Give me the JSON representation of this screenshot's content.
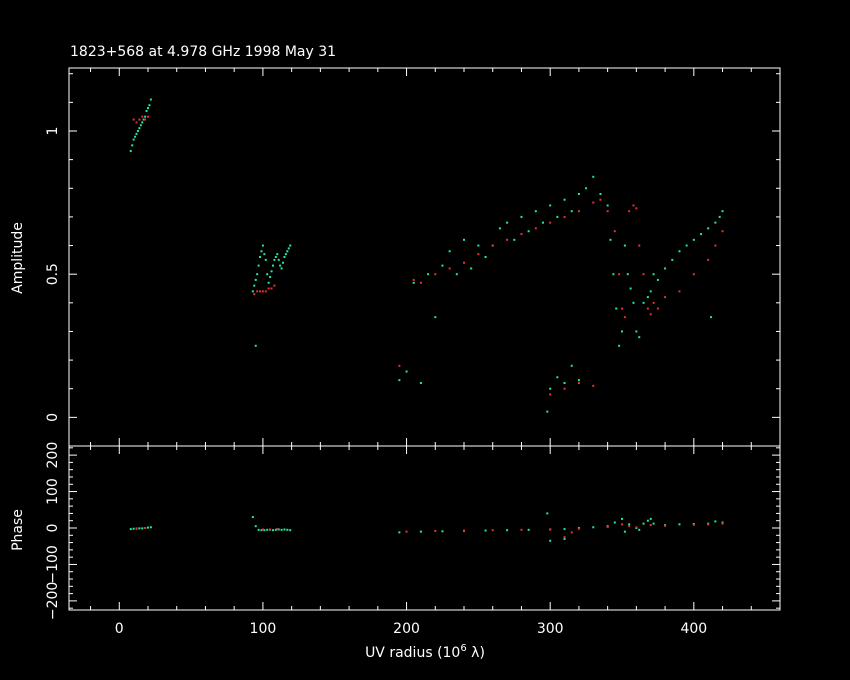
{
  "chart_data": [
    {
      "type": "scatter",
      "panel": "amplitude",
      "title": "1823+568 at 4.978 GHz 1998 May 31",
      "ylabel": "Amplitude",
      "xlabel": "",
      "xlim": [
        -35,
        460
      ],
      "ylim": [
        -0.1,
        1.22
      ],
      "xticks": [
        0,
        100,
        200,
        300,
        400
      ],
      "yticks": [
        0,
        0.5,
        1
      ],
      "ytick_labels": [
        "0",
        "0.5",
        "1"
      ],
      "series": [
        {
          "color": "#20e8a0",
          "points": [
            [
              8,
              0.93
            ],
            [
              9,
              0.95
            ],
            [
              10,
              0.97
            ],
            [
              11,
              0.98
            ],
            [
              12,
              0.99
            ],
            [
              13,
              1.0
            ],
            [
              14,
              1.01
            ],
            [
              15,
              1.02
            ],
            [
              16,
              1.03
            ],
            [
              17,
              1.04
            ],
            [
              18,
              1.05
            ],
            [
              19,
              1.07
            ],
            [
              20,
              1.08
            ],
            [
              21,
              1.09
            ],
            [
              22,
              1.11
            ],
            [
              93,
              0.44
            ],
            [
              94,
              0.46
            ],
            [
              95,
              0.48
            ],
            [
              96,
              0.5
            ],
            [
              97,
              0.53
            ],
            [
              98,
              0.56
            ],
            [
              99,
              0.58
            ],
            [
              100,
              0.6
            ],
            [
              101,
              0.57
            ],
            [
              102,
              0.55
            ],
            [
              103,
              0.5
            ],
            [
              104,
              0.47
            ],
            [
              105,
              0.49
            ],
            [
              106,
              0.51
            ],
            [
              107,
              0.53
            ],
            [
              108,
              0.55
            ],
            [
              109,
              0.56
            ],
            [
              110,
              0.57
            ],
            [
              111,
              0.55
            ],
            [
              112,
              0.53
            ],
            [
              113,
              0.52
            ],
            [
              114,
              0.54
            ],
            [
              115,
              0.56
            ],
            [
              116,
              0.57
            ],
            [
              117,
              0.58
            ],
            [
              118,
              0.59
            ],
            [
              119,
              0.6
            ],
            [
              95,
              0.25
            ],
            [
              195,
              0.13
            ],
            [
              200,
              0.16
            ],
            [
              205,
              0.47
            ],
            [
              210,
              0.12
            ],
            [
              215,
              0.5
            ],
            [
              220,
              0.35
            ],
            [
              225,
              0.53
            ],
            [
              230,
              0.58
            ],
            [
              235,
              0.5
            ],
            [
              240,
              0.62
            ],
            [
              245,
              0.52
            ],
            [
              250,
              0.6
            ],
            [
              255,
              0.56
            ],
            [
              260,
              0.6
            ],
            [
              265,
              0.66
            ],
            [
              270,
              0.68
            ],
            [
              275,
              0.62
            ],
            [
              280,
              0.7
            ],
            [
              285,
              0.65
            ],
            [
              290,
              0.72
            ],
            [
              295,
              0.68
            ],
            [
              300,
              0.74
            ],
            [
              305,
              0.7
            ],
            [
              310,
              0.76
            ],
            [
              315,
              0.72
            ],
            [
              320,
              0.78
            ],
            [
              325,
              0.8
            ],
            [
              330,
              0.84
            ],
            [
              335,
              0.78
            ],
            [
              340,
              0.74
            ],
            [
              342,
              0.62
            ],
            [
              344,
              0.5
            ],
            [
              346,
              0.38
            ],
            [
              348,
              0.25
            ],
            [
              350,
              0.3
            ],
            [
              352,
              0.6
            ],
            [
              354,
              0.5
            ],
            [
              356,
              0.45
            ],
            [
              358,
              0.4
            ],
            [
              360,
              0.3
            ],
            [
              362,
              0.28
            ],
            [
              365,
              0.4
            ],
            [
              368,
              0.42
            ],
            [
              370,
              0.44
            ],
            [
              372,
              0.5
            ],
            [
              375,
              0.48
            ],
            [
              380,
              0.52
            ],
            [
              385,
              0.55
            ],
            [
              390,
              0.58
            ],
            [
              395,
              0.6
            ],
            [
              400,
              0.62
            ],
            [
              405,
              0.64
            ],
            [
              410,
              0.66
            ],
            [
              412,
              0.35
            ],
            [
              415,
              0.68
            ],
            [
              418,
              0.7
            ],
            [
              420,
              0.72
            ],
            [
              300,
              0.1
            ],
            [
              305,
              0.14
            ],
            [
              310,
              0.12
            ],
            [
              315,
              0.18
            ],
            [
              320,
              0.13
            ],
            [
              298,
              0.02
            ]
          ]
        },
        {
          "color": "#e83030",
          "points": [
            [
              10,
              1.04
            ],
            [
              12,
              1.03
            ],
            [
              14,
              1.04
            ],
            [
              16,
              1.05
            ],
            [
              18,
              1.04
            ],
            [
              20,
              1.05
            ],
            [
              94,
              0.43
            ],
            [
              96,
              0.44
            ],
            [
              98,
              0.44
            ],
            [
              100,
              0.44
            ],
            [
              102,
              0.44
            ],
            [
              104,
              0.45
            ],
            [
              106,
              0.45
            ],
            [
              108,
              0.46
            ],
            [
              195,
              0.18
            ],
            [
              205,
              0.48
            ],
            [
              210,
              0.47
            ],
            [
              220,
              0.5
            ],
            [
              230,
              0.52
            ],
            [
              240,
              0.54
            ],
            [
              250,
              0.57
            ],
            [
              260,
              0.6
            ],
            [
              270,
              0.62
            ],
            [
              280,
              0.64
            ],
            [
              290,
              0.66
            ],
            [
              300,
              0.68
            ],
            [
              310,
              0.7
            ],
            [
              320,
              0.72
            ],
            [
              330,
              0.75
            ],
            [
              335,
              0.76
            ],
            [
              340,
              0.72
            ],
            [
              345,
              0.65
            ],
            [
              348,
              0.5
            ],
            [
              350,
              0.38
            ],
            [
              352,
              0.35
            ],
            [
              355,
              0.72
            ],
            [
              358,
              0.74
            ],
            [
              360,
              0.73
            ],
            [
              362,
              0.6
            ],
            [
              365,
              0.5
            ],
            [
              368,
              0.38
            ],
            [
              370,
              0.36
            ],
            [
              372,
              0.4
            ],
            [
              375,
              0.38
            ],
            [
              380,
              0.42
            ],
            [
              390,
              0.44
            ],
            [
              400,
              0.5
            ],
            [
              410,
              0.55
            ],
            [
              415,
              0.6
            ],
            [
              420,
              0.65
            ],
            [
              300,
              0.08
            ],
            [
              310,
              0.1
            ],
            [
              320,
              0.12
            ],
            [
              330,
              0.11
            ]
          ]
        }
      ]
    },
    {
      "type": "scatter",
      "panel": "phase",
      "ylabel": "Phase",
      "xlabel": "UV radius  (10^6 λ)",
      "xlim": [
        -35,
        460
      ],
      "ylim": [
        -225,
        225
      ],
      "xticks": [
        0,
        100,
        200,
        300,
        400
      ],
      "xtick_labels": [
        "0",
        "100",
        "200",
        "300",
        "400"
      ],
      "yticks": [
        -200,
        -100,
        0,
        100,
        200
      ],
      "ytick_labels": [
        "−200",
        "−100",
        "0",
        "100",
        "200"
      ],
      "series": [
        {
          "color": "#20e8a0",
          "points": [
            [
              8,
              -3
            ],
            [
              10,
              -2
            ],
            [
              12,
              -2
            ],
            [
              14,
              -1
            ],
            [
              16,
              -1
            ],
            [
              18,
              0
            ],
            [
              20,
              1
            ],
            [
              22,
              2
            ],
            [
              93,
              30
            ],
            [
              95,
              5
            ],
            [
              97,
              -5
            ],
            [
              99,
              -6
            ],
            [
              101,
              -6
            ],
            [
              103,
              -5
            ],
            [
              105,
              -5
            ],
            [
              107,
              -6
            ],
            [
              109,
              -5
            ],
            [
              111,
              -4
            ],
            [
              113,
              -5
            ],
            [
              115,
              -4
            ],
            [
              117,
              -5
            ],
            [
              119,
              -6
            ],
            [
              195,
              -12
            ],
            [
              210,
              -10
            ],
            [
              225,
              -9
            ],
            [
              240,
              -8
            ],
            [
              255,
              -7
            ],
            [
              270,
              -6
            ],
            [
              285,
              -5
            ],
            [
              298,
              40
            ],
            [
              300,
              -4
            ],
            [
              310,
              -3
            ],
            [
              320,
              0
            ],
            [
              330,
              2
            ],
            [
              340,
              5
            ],
            [
              345,
              15
            ],
            [
              350,
              25
            ],
            [
              352,
              -10
            ],
            [
              355,
              10
            ],
            [
              360,
              0
            ],
            [
              362,
              -5
            ],
            [
              365,
              12
            ],
            [
              368,
              20
            ],
            [
              370,
              25
            ],
            [
              372,
              12
            ],
            [
              380,
              8
            ],
            [
              390,
              10
            ],
            [
              400,
              11
            ],
            [
              410,
              12
            ],
            [
              415,
              18
            ],
            [
              420,
              15
            ],
            [
              300,
              -35
            ],
            [
              310,
              -30
            ]
          ]
        },
        {
          "color": "#e83030",
          "points": [
            [
              12,
              -1
            ],
            [
              18,
              0
            ],
            [
              100,
              -4
            ],
            [
              105,
              -4
            ],
            [
              110,
              -3
            ],
            [
              200,
              -10
            ],
            [
              220,
              -8
            ],
            [
              240,
              -7
            ],
            [
              260,
              -6
            ],
            [
              280,
              -5
            ],
            [
              300,
              -4
            ],
            [
              320,
              -2
            ],
            [
              340,
              3
            ],
            [
              350,
              10
            ],
            [
              355,
              5
            ],
            [
              360,
              2
            ],
            [
              370,
              8
            ],
            [
              380,
              6
            ],
            [
              400,
              9
            ],
            [
              410,
              10
            ],
            [
              420,
              12
            ],
            [
              310,
              -25
            ],
            [
              315,
              -12
            ]
          ]
        }
      ]
    }
  ]
}
